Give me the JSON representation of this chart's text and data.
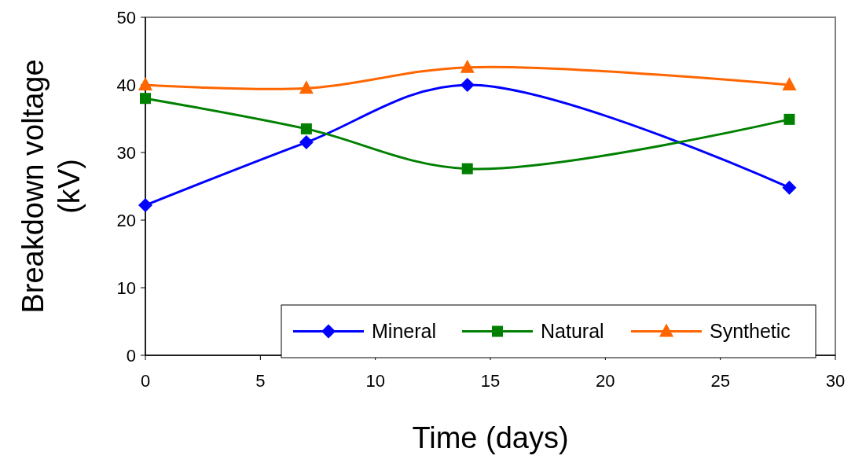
{
  "chart_data": {
    "type": "line",
    "xlabel": "Time (days)",
    "ylabel": "Breakdown voltage (kV)",
    "x": [
      0,
      7,
      14,
      28
    ],
    "xlim": [
      0,
      30
    ],
    "xticks": [
      0,
      5,
      10,
      15,
      20,
      25,
      30
    ],
    "ylim": [
      0,
      50
    ],
    "yticks": [
      0,
      10,
      20,
      30,
      40,
      50
    ],
    "legend": "bottom right",
    "grid": false,
    "series": [
      {
        "name": "Mineral",
        "color": "#0000ff",
        "marker": "diamond",
        "values": [
          22.2,
          31.5,
          40,
          24.8
        ]
      },
      {
        "name": "Natural",
        "color": "#008000",
        "marker": "square",
        "values": [
          38,
          33.5,
          27.6,
          34.9
        ]
      },
      {
        "name": "Synthetic",
        "color": "#ff6600",
        "marker": "triangle",
        "values": [
          40,
          39.5,
          42.6,
          40
        ]
      }
    ]
  }
}
